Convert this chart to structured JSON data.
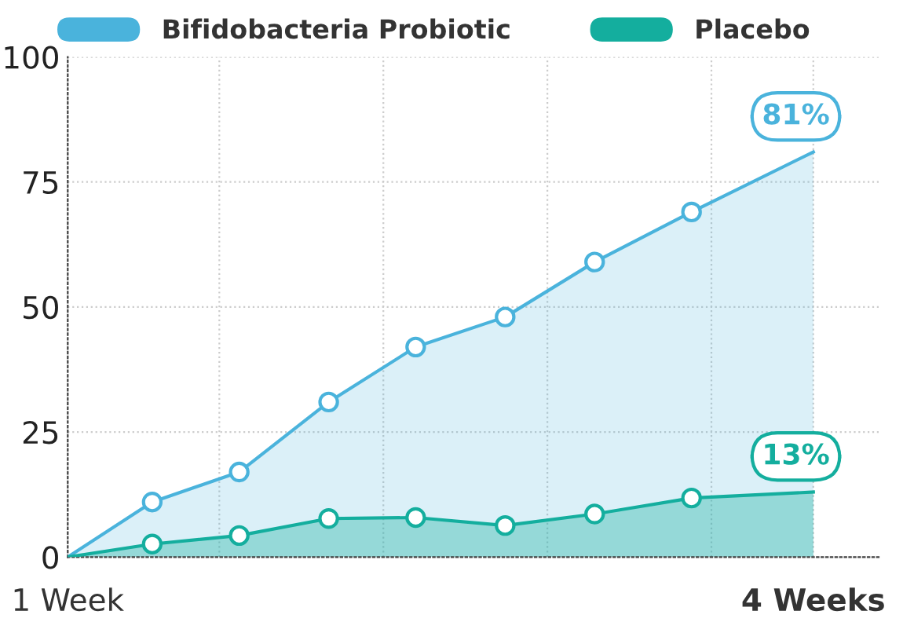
{
  "chart_data": {
    "type": "area",
    "x": [
      1,
      1.34,
      1.69,
      2.05,
      2.4,
      2.76,
      3.12,
      3.51,
      4
    ],
    "series": [
      {
        "name": "Bifidobacteria Probiotic",
        "color": "#4ab3dc",
        "values": [
          0,
          11,
          17,
          31,
          42,
          48,
          59,
          69,
          81
        ],
        "value_labels": [
          null,
          null,
          null,
          null,
          null,
          null,
          null,
          null,
          "81%"
        ]
      },
      {
        "name": "Placebo",
        "color": "#14ae9e",
        "values": [
          0,
          2.6,
          4.3,
          7.7,
          7.9,
          6.3,
          8.6,
          11.8,
          13
        ],
        "value_labels": [
          null,
          null,
          null,
          null,
          null,
          null,
          null,
          null,
          "13%"
        ]
      }
    ],
    "xlim": [
      1,
      4.27
    ],
    "xticks": [
      {
        "value": 1,
        "label": "1 Week"
      },
      {
        "value": 1.61,
        "label": null
      },
      {
        "value": 2.27,
        "label": null
      },
      {
        "value": 2.93,
        "label": null
      },
      {
        "value": 3.59,
        "label": null
      },
      {
        "value": 4,
        "label": "4 Weeks"
      }
    ],
    "ylim": [
      0,
      100
    ],
    "yticks": [
      0,
      25,
      50,
      75,
      100
    ],
    "grid": true,
    "legend": "top",
    "marker": "circle",
    "line_style": "solid"
  }
}
